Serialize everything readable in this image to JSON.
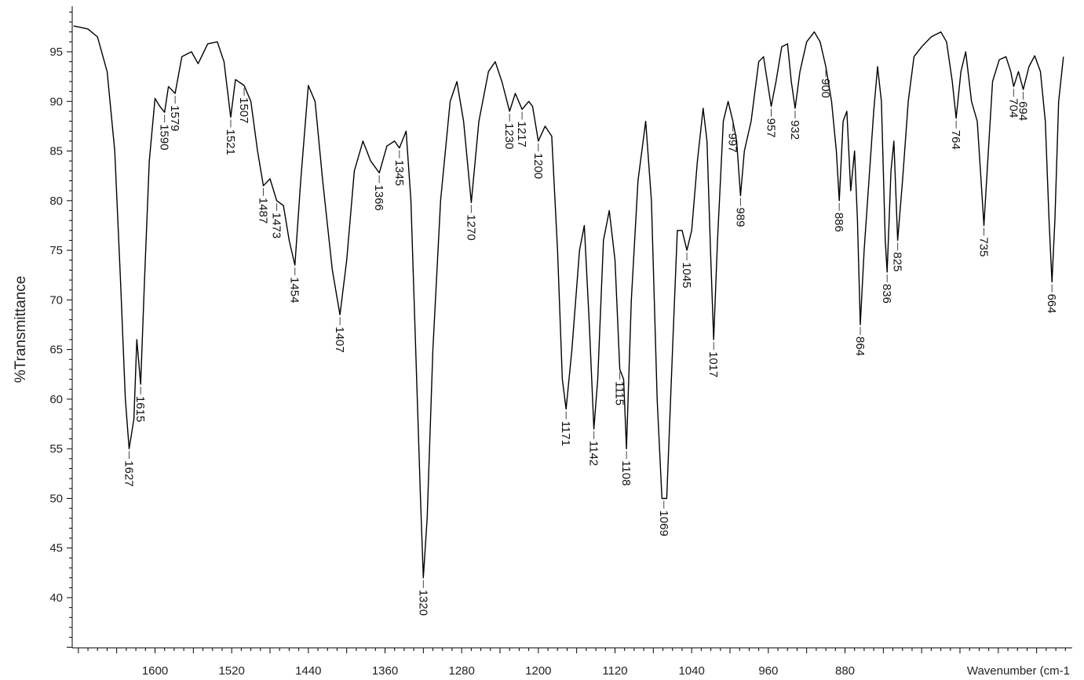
{
  "chart_data": {
    "type": "line",
    "title": "",
    "ylabel": "%Transmittance",
    "xlabel": "Wavenumber (cm-1",
    "xlim": [
      1680,
      640
    ],
    "ylim": [
      35,
      99
    ],
    "x_ticks": [
      {
        "value": 1600,
        "label": "1600"
      },
      {
        "value": 1520,
        "label": "1520"
      },
      {
        "value": 1440,
        "label": "1440"
      },
      {
        "value": 1360,
        "label": "1360"
      },
      {
        "value": 1280,
        "label": "1280"
      },
      {
        "value": 1200,
        "label": "1200"
      },
      {
        "value": 1120,
        "label": "1120"
      },
      {
        "value": 1040,
        "label": "1040"
      },
      {
        "value": 960,
        "label": "960"
      },
      {
        "value": 880,
        "label": "880"
      }
    ],
    "y_ticks": [
      {
        "value": 95,
        "label": "95"
      },
      {
        "value": 90,
        "label": "90"
      },
      {
        "value": 85,
        "label": "85"
      },
      {
        "value": 80,
        "label": "80"
      },
      {
        "value": 75,
        "label": "75"
      },
      {
        "value": 70,
        "label": "70"
      },
      {
        "value": 65,
        "label": "65"
      },
      {
        "value": 60,
        "label": "60"
      },
      {
        "value": 55,
        "label": "55"
      },
      {
        "value": 50,
        "label": "50"
      },
      {
        "value": 45,
        "label": "45"
      },
      {
        "value": 40,
        "label": "40"
      }
    ],
    "grid": false,
    "series": [
      {
        "color": "#000000",
        "points": [
          [
            1685,
            97.6
          ],
          [
            1670,
            97.3
          ],
          [
            1660,
            96.5
          ],
          [
            1650,
            93.0
          ],
          [
            1642,
            85.0
          ],
          [
            1636,
            72.0
          ],
          [
            1631,
            60.0
          ],
          [
            1627,
            55.0
          ],
          [
            1622,
            58.0
          ],
          [
            1619,
            66.0
          ],
          [
            1615,
            61.5
          ],
          [
            1611,
            72.0
          ],
          [
            1606,
            84.0
          ],
          [
            1600,
            90.3
          ],
          [
            1595,
            89.5
          ],
          [
            1590,
            88.9
          ],
          [
            1586,
            91.5
          ],
          [
            1579,
            90.8
          ],
          [
            1572,
            94.5
          ],
          [
            1562,
            95.0
          ],
          [
            1555,
            93.8
          ],
          [
            1545,
            95.8
          ],
          [
            1535,
            96.0
          ],
          [
            1528,
            94.0
          ],
          [
            1521,
            88.4
          ],
          [
            1516,
            92.2
          ],
          [
            1507,
            91.6
          ],
          [
            1500,
            90.0
          ],
          [
            1493,
            85.0
          ],
          [
            1487,
            81.5
          ],
          [
            1480,
            82.2
          ],
          [
            1473,
            80.0
          ],
          [
            1466,
            79.5
          ],
          [
            1460,
            76.0
          ],
          [
            1454,
            73.5
          ],
          [
            1448,
            82.0
          ],
          [
            1440,
            91.6
          ],
          [
            1433,
            90.0
          ],
          [
            1425,
            82.0
          ],
          [
            1415,
            73.0
          ],
          [
            1407,
            68.5
          ],
          [
            1400,
            74.0
          ],
          [
            1392,
            83.0
          ],
          [
            1383,
            86.0
          ],
          [
            1375,
            84.0
          ],
          [
            1366,
            82.8
          ],
          [
            1358,
            85.5
          ],
          [
            1350,
            86.0
          ],
          [
            1345,
            85.3
          ],
          [
            1338,
            87.0
          ],
          [
            1333,
            80.0
          ],
          [
            1328,
            65.0
          ],
          [
            1323,
            50.0
          ],
          [
            1320,
            42.0
          ],
          [
            1316,
            48.0
          ],
          [
            1310,
            65.0
          ],
          [
            1302,
            80.0
          ],
          [
            1292,
            90.0
          ],
          [
            1285,
            92.0
          ],
          [
            1278,
            88.0
          ],
          [
            1270,
            79.8
          ],
          [
            1262,
            88.0
          ],
          [
            1252,
            93.0
          ],
          [
            1245,
            94.0
          ],
          [
            1238,
            92.0
          ],
          [
            1230,
            89.0
          ],
          [
            1224,
            90.8
          ],
          [
            1217,
            89.2
          ],
          [
            1210,
            90.0
          ],
          [
            1206,
            89.5
          ],
          [
            1200,
            86.0
          ],
          [
            1193,
            87.5
          ],
          [
            1186,
            86.5
          ],
          [
            1180,
            75.0
          ],
          [
            1175,
            62.0
          ],
          [
            1171,
            59.0
          ],
          [
            1165,
            65.0
          ],
          [
            1157,
            75.0
          ],
          [
            1152,
            77.5
          ],
          [
            1147,
            68.0
          ],
          [
            1142,
            57.0
          ],
          [
            1138,
            62.0
          ],
          [
            1132,
            76.0
          ],
          [
            1126,
            79.0
          ],
          [
            1120,
            74.0
          ],
          [
            1115,
            63.0
          ],
          [
            1111,
            62.0
          ],
          [
            1108,
            55.0
          ],
          [
            1103,
            70.0
          ],
          [
            1096,
            82.0
          ],
          [
            1088,
            88.0
          ],
          [
            1082,
            80.0
          ],
          [
            1076,
            60.0
          ],
          [
            1071,
            50.0
          ],
          [
            1066,
            50.0
          ],
          [
            1060,
            65.0
          ],
          [
            1055,
            77.0
          ],
          [
            1050,
            77.0
          ],
          [
            1045,
            75.0
          ],
          [
            1040,
            77.0
          ],
          [
            1034,
            84.0
          ],
          [
            1028,
            89.3
          ],
          [
            1024,
            86.0
          ],
          [
            1020,
            74.0
          ],
          [
            1017,
            66.0
          ],
          [
            1013,
            76.0
          ],
          [
            1007,
            88.0
          ],
          [
            1002,
            90.0
          ],
          [
            997,
            88.0
          ],
          [
            993,
            86.0
          ],
          [
            989,
            80.5
          ],
          [
            985,
            85.0
          ],
          [
            978,
            88.0
          ],
          [
            970,
            94.0
          ],
          [
            965,
            94.5
          ],
          [
            961,
            92.0
          ],
          [
            957,
            89.5
          ],
          [
            952,
            92.0
          ],
          [
            946,
            95.5
          ],
          [
            940,
            95.8
          ],
          [
            936,
            92.0
          ],
          [
            932,
            89.3
          ],
          [
            927,
            93.0
          ],
          [
            920,
            96.0
          ],
          [
            912,
            97.0
          ],
          [
            906,
            96.0
          ],
          [
            900,
            93.5
          ],
          [
            894,
            90.0
          ],
          [
            889,
            85.0
          ],
          [
            886,
            80.0
          ],
          [
            882,
            88.0
          ],
          [
            878,
            89.0
          ],
          [
            874,
            81.0
          ],
          [
            870,
            85.0
          ],
          [
            867,
            78.0
          ],
          [
            864,
            67.5
          ],
          [
            860,
            75.0
          ],
          [
            855,
            82.0
          ],
          [
            850,
            89.0
          ],
          [
            846,
            93.5
          ],
          [
            842,
            90.0
          ],
          [
            838,
            76.0
          ],
          [
            836,
            72.8
          ],
          [
            832,
            83.0
          ],
          [
            829,
            86.0
          ],
          [
            825,
            76.0
          ],
          [
            820,
            82.0
          ],
          [
            814,
            90.0
          ],
          [
            808,
            94.5
          ],
          [
            800,
            95.5
          ],
          [
            790,
            96.5
          ],
          [
            780,
            97.0
          ],
          [
            774,
            96.0
          ],
          [
            768,
            92.0
          ],
          [
            764,
            88.3
          ],
          [
            759,
            93.0
          ],
          [
            754,
            95.0
          ],
          [
            748,
            90.0
          ],
          [
            742,
            88.0
          ],
          [
            738,
            82.0
          ],
          [
            735,
            77.5
          ],
          [
            731,
            84.0
          ],
          [
            726,
            92.0
          ],
          [
            719,
            94.2
          ],
          [
            712,
            94.5
          ],
          [
            707,
            93.0
          ],
          [
            704,
            91.5
          ],
          [
            699,
            93.0
          ],
          [
            694,
            91.2
          ],
          [
            688,
            93.5
          ],
          [
            682,
            94.6
          ],
          [
            676,
            93.0
          ],
          [
            671,
            88.0
          ],
          [
            667,
            78.0
          ],
          [
            664,
            71.8
          ],
          [
            661,
            78.0
          ],
          [
            657,
            90.0
          ],
          [
            652,
            94.5
          ]
        ]
      }
    ],
    "peak_labels": [
      {
        "x": 1627,
        "label": "1627"
      },
      {
        "x": 1615,
        "label": "1615"
      },
      {
        "x": 1590,
        "label": "1590"
      },
      {
        "x": 1579,
        "label": "1579"
      },
      {
        "x": 1521,
        "label": "1521"
      },
      {
        "x": 1507,
        "label": "1507"
      },
      {
        "x": 1487,
        "label": "1487"
      },
      {
        "x": 1473,
        "label": "1473"
      },
      {
        "x": 1454,
        "label": "1454"
      },
      {
        "x": 1407,
        "label": "1407"
      },
      {
        "x": 1366,
        "label": "1366"
      },
      {
        "x": 1345,
        "label": "1345"
      },
      {
        "x": 1320,
        "label": "1320"
      },
      {
        "x": 1270,
        "label": "1270"
      },
      {
        "x": 1230,
        "label": "1230"
      },
      {
        "x": 1217,
        "label": "1217"
      },
      {
        "x": 1200,
        "label": "1200"
      },
      {
        "x": 1171,
        "label": "1171"
      },
      {
        "x": 1142,
        "label": "1142"
      },
      {
        "x": 1115,
        "label": "1115"
      },
      {
        "x": 1108,
        "label": "1108"
      },
      {
        "x": 1069,
        "label": "1069"
      },
      {
        "x": 1045,
        "label": "1045"
      },
      {
        "x": 1017,
        "label": "1017"
      },
      {
        "x": 997,
        "label": "997"
      },
      {
        "x": 989,
        "label": "989"
      },
      {
        "x": 957,
        "label": "957"
      },
      {
        "x": 932,
        "label": "932"
      },
      {
        "x": 900,
        "label": "900"
      },
      {
        "x": 886,
        "label": "886"
      },
      {
        "x": 864,
        "label": "864"
      },
      {
        "x": 836,
        "label": "836"
      },
      {
        "x": 825,
        "label": "825"
      },
      {
        "x": 764,
        "label": "764"
      },
      {
        "x": 735,
        "label": "735"
      },
      {
        "x": 704,
        "label": "704"
      },
      {
        "x": 694,
        "label": "694"
      },
      {
        "x": 664,
        "label": "664"
      }
    ]
  }
}
